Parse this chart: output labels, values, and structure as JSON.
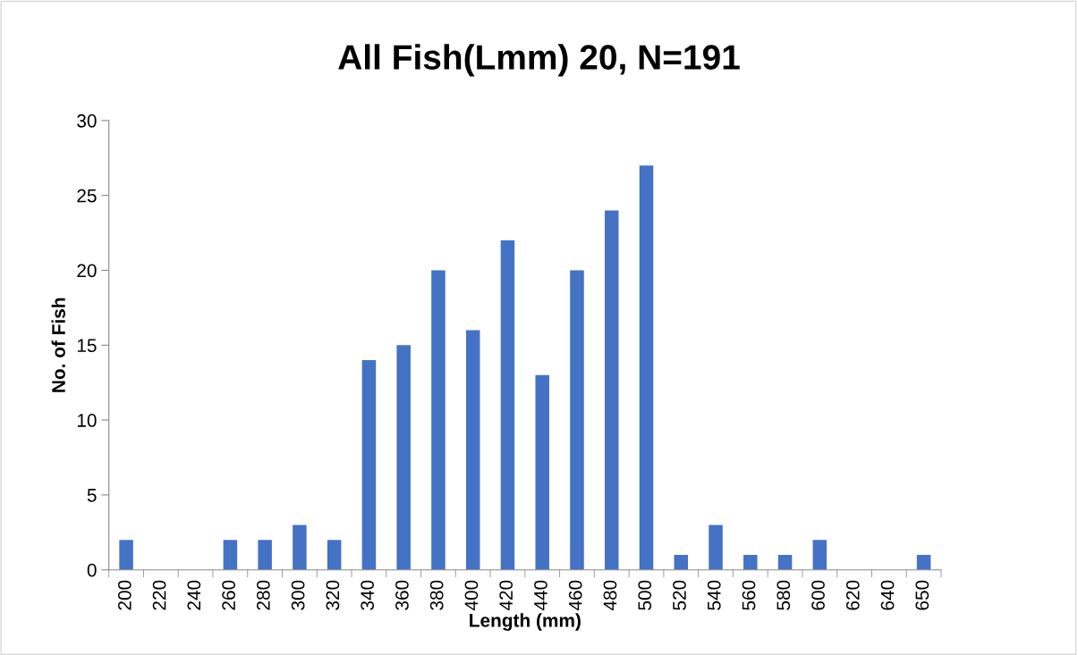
{
  "chart_data": {
    "type": "bar",
    "title": "All Fish(Lmm) 20, N=191",
    "xlabel": "Length (mm)",
    "ylabel": "No. of Fish",
    "categories": [
      "200",
      "220",
      "240",
      "260",
      "280",
      "300",
      "320",
      "340",
      "360",
      "380",
      "400",
      "420",
      "440",
      "460",
      "480",
      "500",
      "520",
      "540",
      "560",
      "580",
      "600",
      "620",
      "640",
      "650"
    ],
    "values": [
      2,
      0,
      0,
      2,
      2,
      3,
      2,
      14,
      15,
      20,
      16,
      22,
      13,
      20,
      24,
      27,
      1,
      3,
      1,
      1,
      2,
      0,
      0,
      1
    ],
    "color": "#4472c4",
    "ylim": [
      0,
      30
    ],
    "yticks": [
      0,
      5,
      10,
      15,
      20,
      25,
      30
    ],
    "grid": false,
    "legend": false
  }
}
